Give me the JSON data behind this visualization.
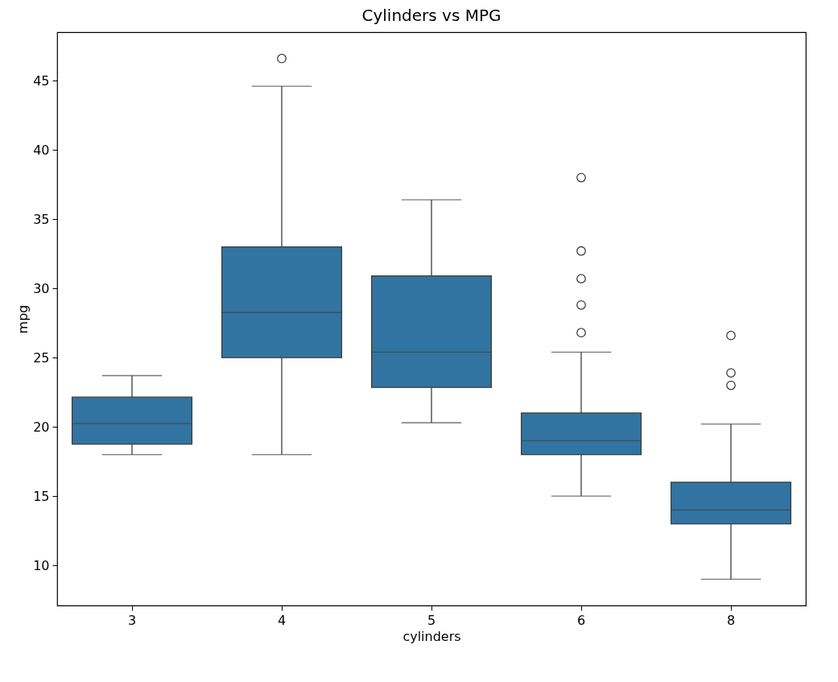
{
  "chart_data": {
    "type": "box",
    "title": "Cylinders vs MPG",
    "xlabel": "cylinders",
    "ylabel": "mpg",
    "categories": [
      "3",
      "4",
      "5",
      "6",
      "8"
    ],
    "color": "#3274a1",
    "boxes": [
      {
        "low": 18,
        "q1": 18.75,
        "median": 20.25,
        "q3": 22.15,
        "high": 23.7
      },
      {
        "low": 18,
        "q1": 25,
        "median": 28.25,
        "q3": 33,
        "high": 44.6,
        "outliers": [
          46.6
        ]
      },
      {
        "low": 20.3,
        "q1": 22.85,
        "median": 25.4,
        "q3": 30.9,
        "high": 36.4
      },
      {
        "low": 15,
        "q1": 18,
        "median": 19,
        "q3": 21,
        "high": 25.4,
        "outliers": [
          26.8,
          28.8,
          30.7,
          32.7,
          38
        ]
      },
      {
        "low": 9,
        "q1": 13,
        "median": 14,
        "q3": 16,
        "high": 20.2,
        "outliers": [
          23,
          23.9,
          26.6
        ]
      }
    ],
    "ylim": [
      7.1,
      48.5
    ],
    "yticks": [
      10,
      15,
      20,
      25,
      30,
      35,
      40,
      45
    ]
  }
}
